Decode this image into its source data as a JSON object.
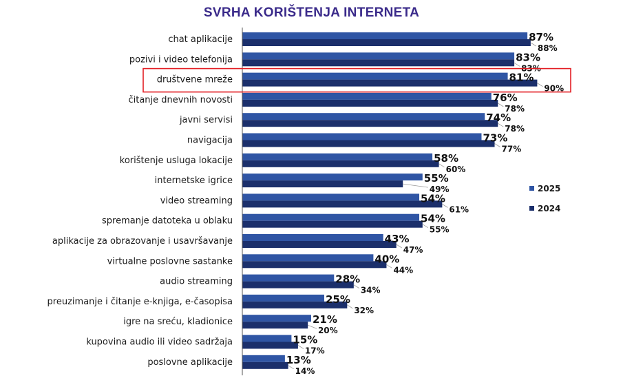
{
  "chart_data": {
    "type": "bar",
    "orientation": "horizontal",
    "title": "SVRHA KORIŠTENJA INTERNETA",
    "xlim": [
      0,
      100
    ],
    "grid": false,
    "legend_position": "right",
    "highlighted_category": "društvene mreže",
    "highlight_color": "#e31e24",
    "categories": [
      "chat aplikacije",
      "pozivi i video telefonija",
      "društvene mreže",
      "čitanje dnevnih novosti",
      "javni servisi",
      "navigacija",
      "korištenje usluga lokacije",
      "internetske igrice",
      "video streaming",
      "spremanje datoteka u oblaku",
      "aplikacije za obrazovanje i usavršavanje",
      "virtualne poslovne sastanke",
      "audio streaming",
      "preuzimanje i čitanje e-knjiga, e-časopisa",
      "igre na sreću, kladionice",
      "kupovina audio ili video sadržaja",
      "poslovne aplikacije"
    ],
    "series": [
      {
        "name": "2025",
        "color": "#2f55a4",
        "values": [
          87,
          83,
          81,
          76,
          74,
          73,
          58,
          55,
          54,
          54,
          43,
          40,
          28,
          25,
          21,
          15,
          13
        ],
        "labels": [
          "87%",
          "83%",
          "81%",
          "76%",
          "74%",
          "73%",
          "58%",
          "55%",
          "54%",
          "54%",
          "43%",
          "40%",
          "28%",
          "25%",
          "21%",
          "15%",
          "13%"
        ]
      },
      {
        "name": "2024",
        "color": "#1b2f6b",
        "values": [
          88,
          83,
          90,
          78,
          78,
          77,
          60,
          49,
          61,
          55,
          47,
          44,
          34,
          32,
          20,
          17,
          14
        ],
        "labels": [
          "88%",
          "83%",
          "90%",
          "78%",
          "78%",
          "77%",
          "60%",
          "49%",
          "61%",
          "55%",
          "47%",
          "44%",
          "34%",
          "32%",
          "20%",
          "17%",
          "14%"
        ]
      }
    ]
  }
}
